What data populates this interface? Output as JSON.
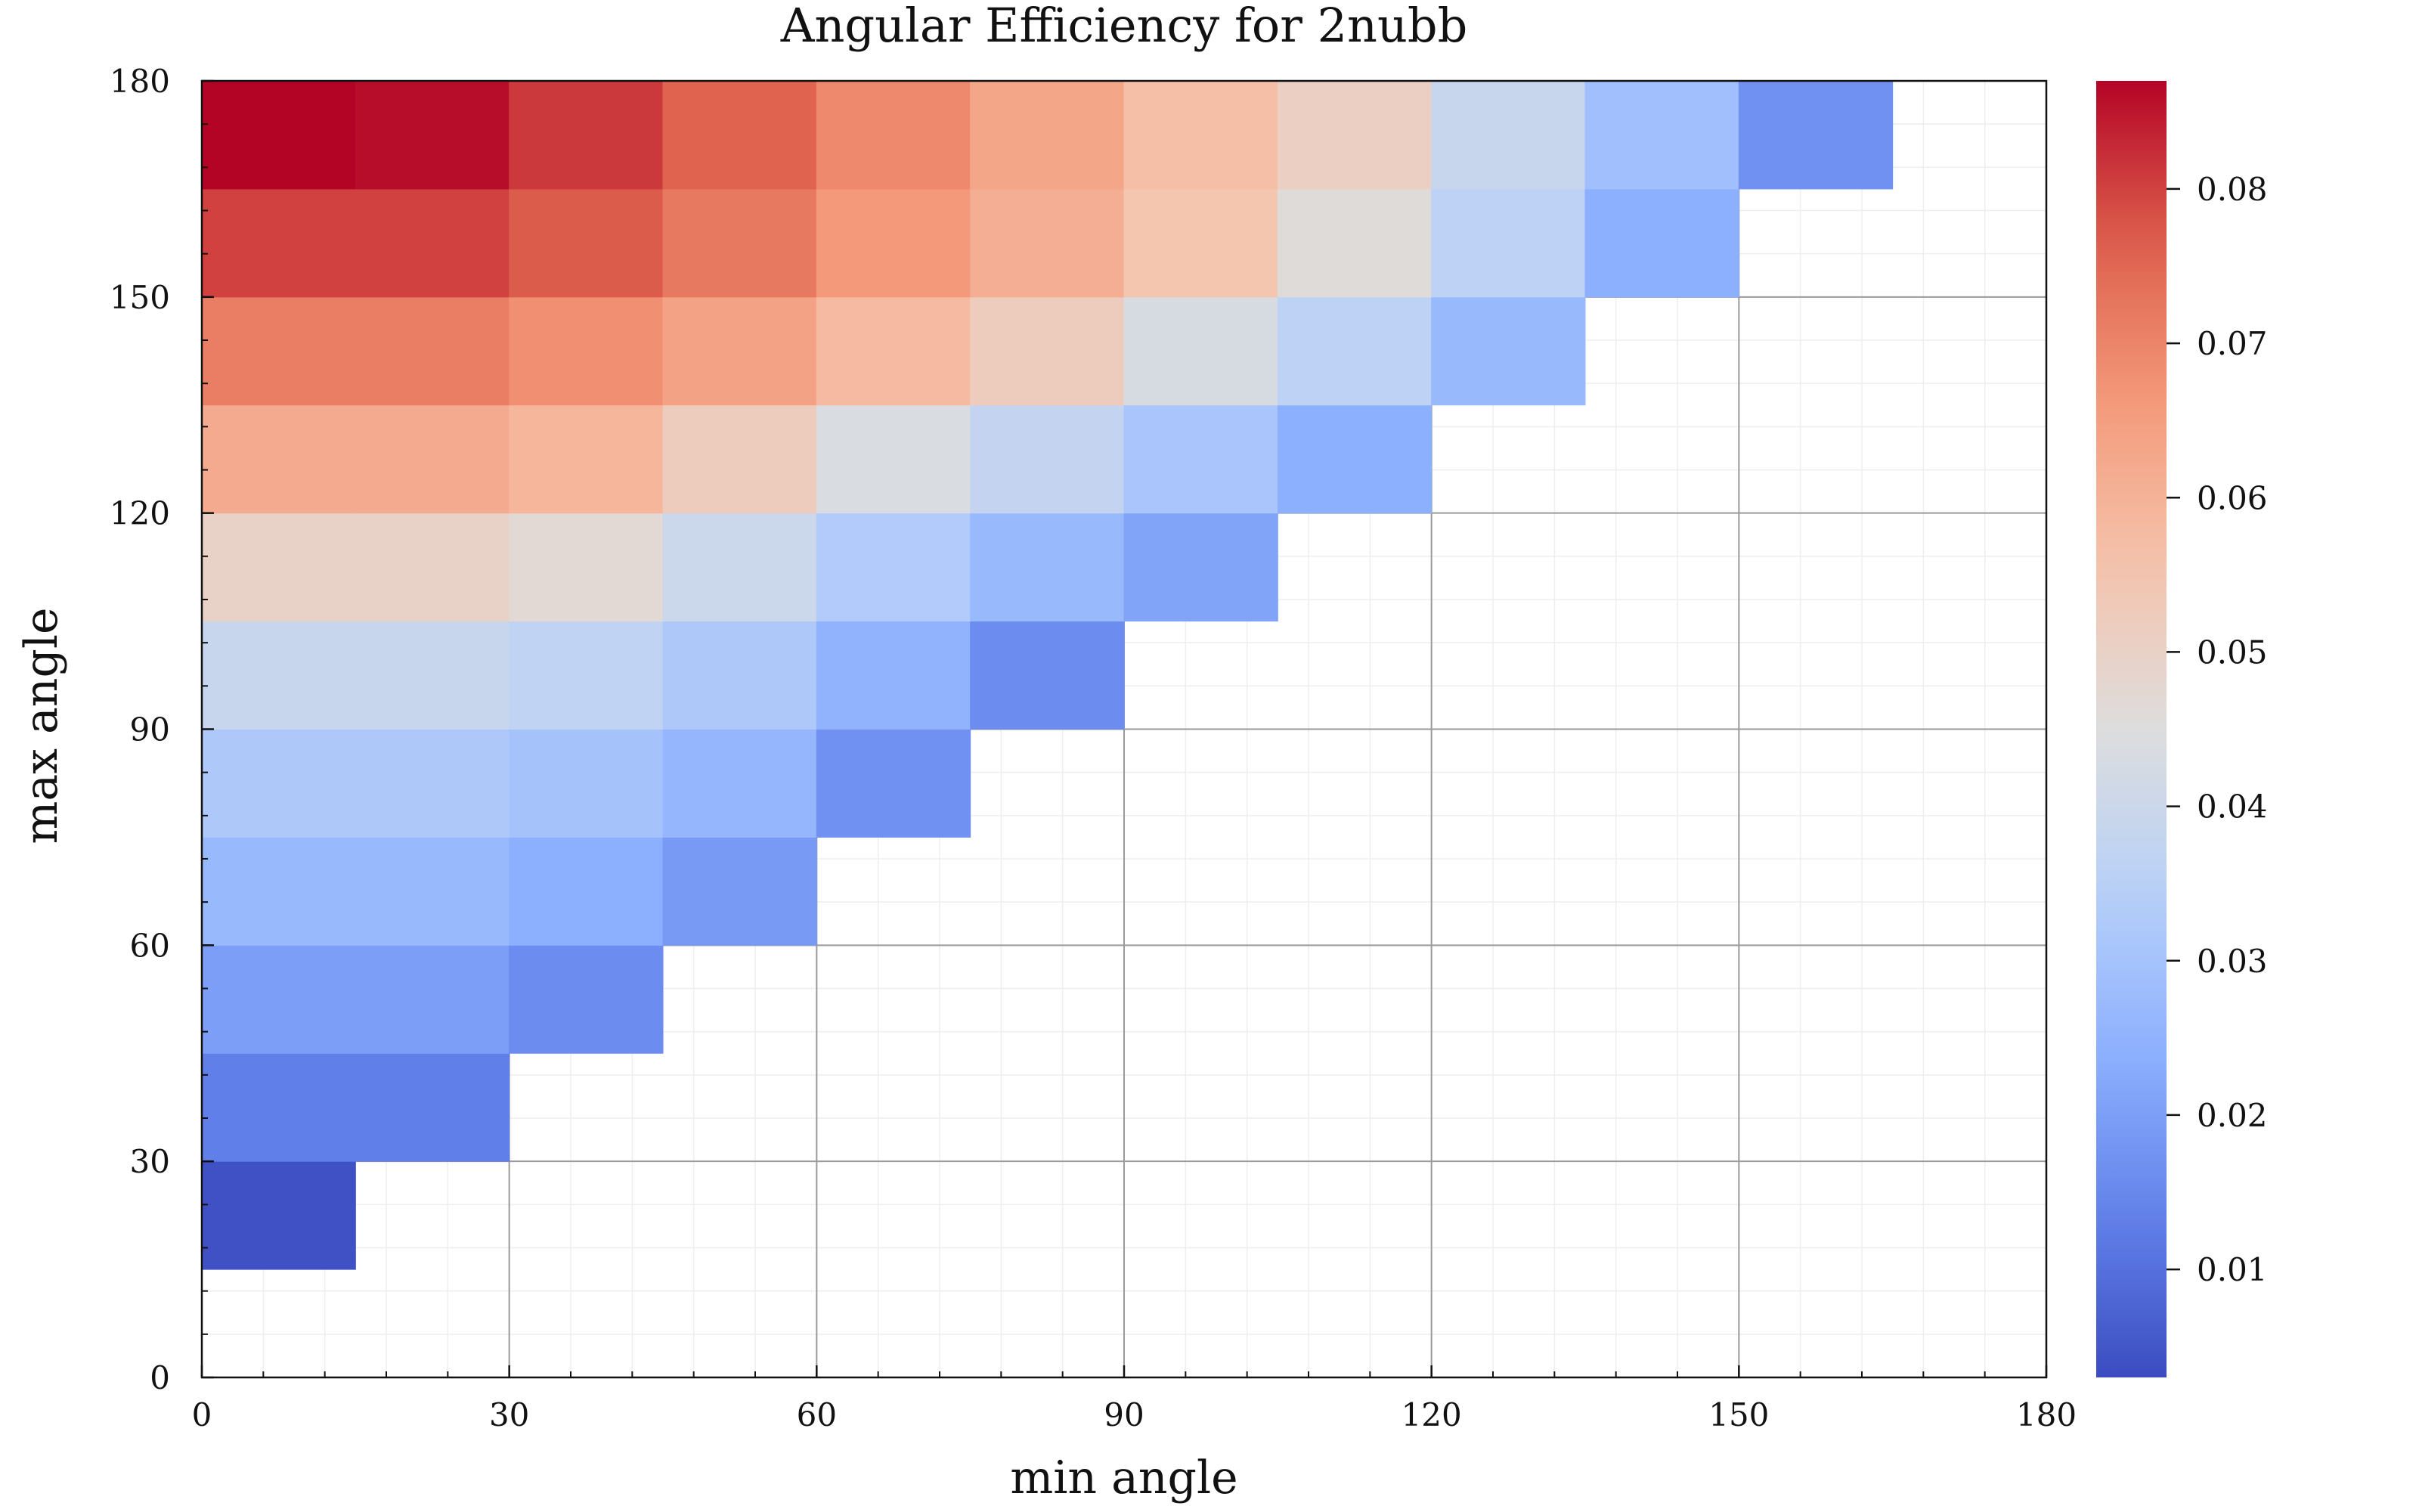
{
  "chart_data": {
    "type": "heatmap",
    "title": "Angular Efficiency for 2nubb",
    "xlabel": "min angle",
    "ylabel": "max angle",
    "xlim": [
      0,
      180
    ],
    "ylim": [
      0,
      180
    ],
    "xticks": [
      0,
      30,
      60,
      90,
      120,
      150,
      180
    ],
    "yticks": [
      0,
      30,
      60,
      90,
      120,
      150,
      180
    ],
    "x_bins": [
      0,
      15,
      30,
      45,
      60,
      75,
      90,
      105,
      120,
      135,
      150,
      165,
      180
    ],
    "y_bins": [
      0,
      15,
      30,
      45,
      60,
      75,
      90,
      105,
      120,
      135,
      150,
      165,
      180
    ],
    "grid": true,
    "colormap": "coolwarm",
    "colorbar": {
      "range": [
        0.003,
        0.087
      ],
      "ticks": [
        "0.01",
        "0.02",
        "0.03",
        "0.04",
        "0.05",
        "0.06",
        "0.07",
        "0.08"
      ],
      "tick_values": [
        0.01,
        0.02,
        0.03,
        0.04,
        0.05,
        0.06,
        0.07,
        0.08
      ]
    },
    "values_rows_max_angle_ascending": [
      [
        null,
        null,
        null,
        null,
        null,
        null,
        null,
        null,
        null,
        null,
        null,
        null
      ],
      [
        0.004,
        null,
        null,
        null,
        null,
        null,
        null,
        null,
        null,
        null,
        null,
        null
      ],
      [
        0.013,
        0.013,
        null,
        null,
        null,
        null,
        null,
        null,
        null,
        null,
        null,
        null
      ],
      [
        0.02,
        0.02,
        0.016,
        null,
        null,
        null,
        null,
        null,
        null,
        null,
        null,
        null
      ],
      [
        0.027,
        0.027,
        0.024,
        0.019,
        null,
        null,
        null,
        null,
        null,
        null,
        null,
        null
      ],
      [
        0.032,
        0.032,
        0.03,
        0.026,
        0.017,
        null,
        null,
        null,
        null,
        null,
        null,
        null
      ],
      [
        0.039,
        0.039,
        0.037,
        0.032,
        0.025,
        0.016,
        null,
        null,
        null,
        null,
        null,
        null
      ],
      [
        0.05,
        0.05,
        0.047,
        0.04,
        0.033,
        0.027,
        0.021,
        null,
        null,
        null,
        null,
        null
      ],
      [
        0.062,
        0.062,
        0.059,
        0.052,
        0.044,
        0.038,
        0.031,
        0.024,
        null,
        null,
        null,
        null
      ],
      [
        0.071,
        0.071,
        0.068,
        0.064,
        0.058,
        0.052,
        0.043,
        0.036,
        0.027,
        null,
        null,
        null
      ],
      [
        0.08,
        0.08,
        0.077,
        0.072,
        0.066,
        0.061,
        0.055,
        0.046,
        0.036,
        0.024,
        null,
        null
      ],
      [
        0.087,
        0.086,
        0.081,
        0.076,
        0.069,
        0.063,
        0.057,
        0.051,
        0.039,
        0.029,
        0.017,
        null
      ]
    ]
  }
}
